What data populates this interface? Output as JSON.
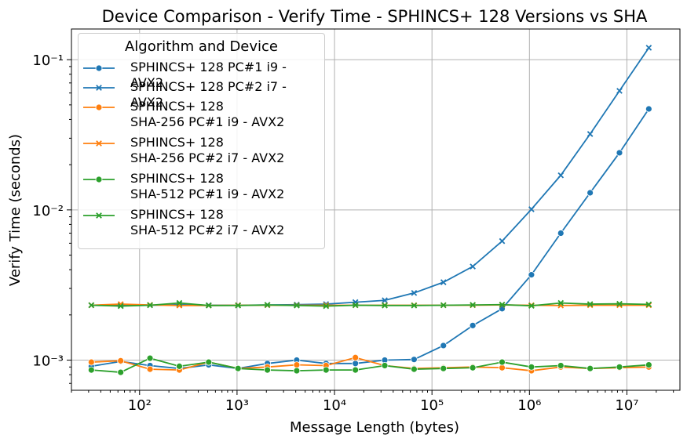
{
  "chart_data": {
    "type": "line",
    "title": "Device Comparison - Verify Time - SPHINCS+ 128 Versions vs SHA",
    "xlabel": "Message Length (bytes)",
    "ylabel": "Verify Time (seconds)",
    "xscale": "log",
    "yscale": "log",
    "xlim": [
      20,
      35000000
    ],
    "ylim": [
      0.00063,
      0.16
    ],
    "grid": true,
    "x_ticks": [
      {
        "value": 100,
        "label": "10²"
      },
      {
        "value": 1000,
        "label": "10³"
      },
      {
        "value": 10000,
        "label": "10⁴"
      },
      {
        "value": 100000,
        "label": "10⁵"
      },
      {
        "value": 1000000,
        "label": "10⁶"
      },
      {
        "value": 10000000,
        "label": "10⁷"
      }
    ],
    "y_ticks": [
      {
        "value": 0.001,
        "label": "10⁻³"
      },
      {
        "value": 0.01,
        "label": "10⁻²"
      },
      {
        "value": 0.1,
        "label": "10⁻¹"
      }
    ],
    "legend": {
      "title": "Algorithm and Device",
      "position": "upper-left"
    },
    "x": [
      32,
      64,
      128,
      256,
      512,
      1024,
      2048,
      4096,
      8192,
      16384,
      32768,
      65536,
      131072,
      262144,
      524288,
      1048576,
      2097152,
      4194304,
      8388608,
      16777216
    ],
    "series": [
      {
        "name": "SPHINCS+ 128 PC#1 i9 - AVX2",
        "color": "#1f77b4",
        "marker": "circle",
        "values": [
          0.00091,
          0.00098,
          0.00092,
          0.00088,
          0.00093,
          0.00088,
          0.00095,
          0.001,
          0.00095,
          0.00095,
          0.001,
          0.00101,
          0.00125,
          0.0017,
          0.0022,
          0.0037,
          0.007,
          0.013,
          0.024,
          0.047
        ]
      },
      {
        "name": "SPHINCS+ 128 PC#2 i7 - AVX2",
        "color": "#1f77b4",
        "marker": "x",
        "values": [
          0.00232,
          0.00232,
          0.00232,
          0.00234,
          0.00232,
          0.00232,
          0.00233,
          0.00234,
          0.00236,
          0.00243,
          0.0025,
          0.0028,
          0.0033,
          0.0042,
          0.0062,
          0.0101,
          0.017,
          0.032,
          0.062,
          0.12
        ]
      },
      {
        "name": "SPHINCS+ 128\nSHA-256 PC#1 i9 - AVX2",
        "color": "#ff7f0e",
        "marker": "circle",
        "values": [
          0.00097,
          0.00099,
          0.00087,
          0.00086,
          0.00097,
          0.00088,
          0.0009,
          0.00093,
          0.00092,
          0.00104,
          0.00092,
          0.00088,
          0.00089,
          0.0009,
          0.00089,
          0.00085,
          0.0009,
          0.00088,
          0.00089,
          0.0009
        ]
      },
      {
        "name": "SPHINCS+ 128\nSHA-256 PC#2 i7 - AVX2",
        "color": "#ff7f0e",
        "marker": "x",
        "values": [
          0.00232,
          0.00236,
          0.00233,
          0.00231,
          0.00231,
          0.00232,
          0.00232,
          0.00232,
          0.00232,
          0.00232,
          0.00232,
          0.00232,
          0.00232,
          0.00232,
          0.00233,
          0.00232,
          0.00231,
          0.00232,
          0.00232,
          0.00232
        ]
      },
      {
        "name": "SPHINCS+ 128\nSHA-512 PC#1 i9 - AVX2",
        "color": "#2ca02c",
        "marker": "circle",
        "values": [
          0.00086,
          0.00083,
          0.00103,
          0.00091,
          0.00097,
          0.00088,
          0.00086,
          0.00085,
          0.00086,
          0.00086,
          0.00092,
          0.00087,
          0.00088,
          0.00089,
          0.00097,
          0.0009,
          0.00092,
          0.00088,
          0.0009,
          0.00093
        ]
      },
      {
        "name": "SPHINCS+ 128\nSHA-512 PC#2 i7 - AVX2",
        "color": "#2ca02c",
        "marker": "x",
        "values": [
          0.00232,
          0.00229,
          0.00232,
          0.0024,
          0.00231,
          0.00231,
          0.00233,
          0.00231,
          0.00229,
          0.00232,
          0.00231,
          0.00231,
          0.00232,
          0.00233,
          0.00234,
          0.0023,
          0.0024,
          0.00236,
          0.00237,
          0.00235
        ]
      }
    ]
  }
}
